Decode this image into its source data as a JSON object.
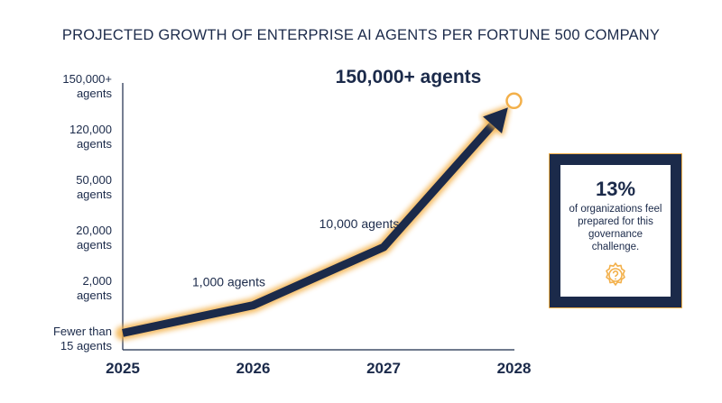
{
  "title": "PROJECTED GROWTH OF ENTERPRISE AI AGENTS PER FORTUNE 500 COMPANY",
  "colors": {
    "navy": "#1b2a4a",
    "glow": "#f3b04a",
    "background": "#ffffff"
  },
  "chart_data": {
    "type": "line",
    "title": "PROJECTED GROWTH OF ENTERPRISE AI AGENTS PER FORTUNE 500 COMPANY",
    "xlabel": "",
    "ylabel": "",
    "x": [
      "2025",
      "2026",
      "2027",
      "2028"
    ],
    "y_scale": "categorical (non-linear)",
    "y_ticks": [
      {
        "line1": "Fewer than",
        "line2": "15 agents"
      },
      {
        "line1": "2,000",
        "line2": "agents"
      },
      {
        "line1": "20,000",
        "line2": "agents"
      },
      {
        "line1": "50,000",
        "line2": "agents"
      },
      {
        "line1": "120,000",
        "line2": "agents"
      },
      {
        "line1": "150,000+",
        "line2": "agents"
      }
    ],
    "points": [
      {
        "x": "2025",
        "tick_level": 0.1,
        "label": ""
      },
      {
        "x": "2026",
        "tick_level": 0.65,
        "label": "1,000 agents"
      },
      {
        "x": "2027",
        "tick_level": 1.8,
        "label": "10,000 agents"
      },
      {
        "x": "2028",
        "tick_level": 4.7,
        "label": "150,000+ agents"
      }
    ],
    "grid": false,
    "legend": "none"
  },
  "callout": {
    "percent": "13%",
    "text": "of organizations feel prepared for this governance challenge.",
    "icon": "gear-question-icon"
  }
}
